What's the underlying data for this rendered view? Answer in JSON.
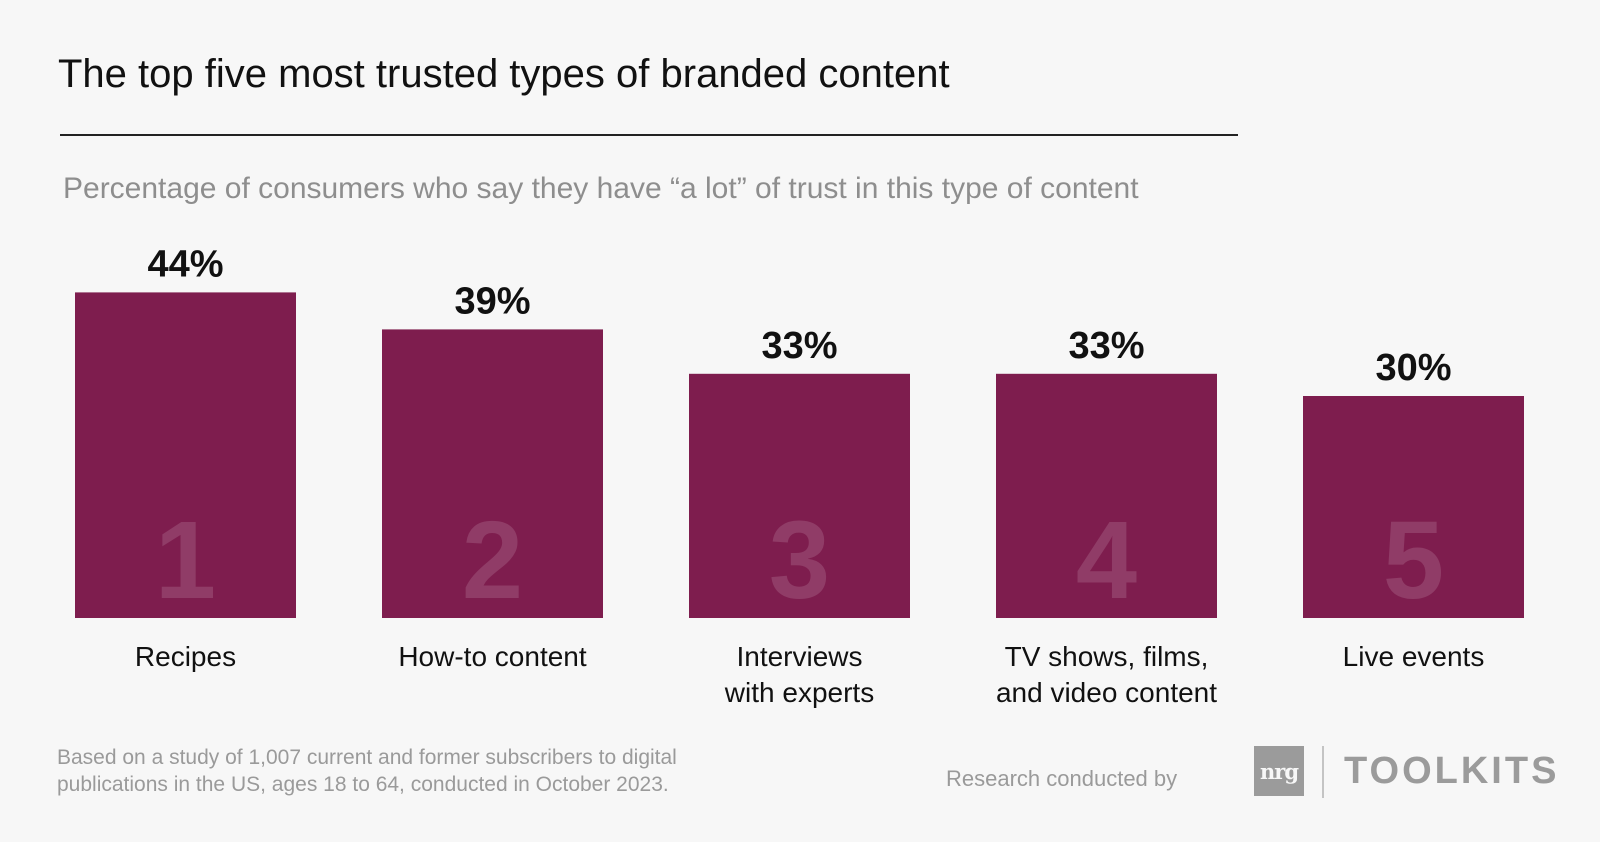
{
  "header": {
    "title": "The top five most trusted types of branded content",
    "subtitle": "Percentage of consumers who say they have “a lot” of trust in this type of content"
  },
  "chart_data": {
    "type": "bar",
    "title": "The top five most trusted types of branded content",
    "subtitle": "Percentage of consumers who say they have “a lot” of trust in this type of content",
    "categories": [
      [
        "Recipes"
      ],
      [
        "How-to content"
      ],
      [
        "Interviews",
        "with experts"
      ],
      [
        "TV shows, films,",
        "and video content"
      ],
      [
        "Live events"
      ]
    ],
    "values": [
      44,
      39,
      33,
      33,
      30
    ],
    "value_labels": [
      "44%",
      "39%",
      "33%",
      "33%",
      "30%"
    ],
    "ranks": [
      "1",
      "2",
      "3",
      "4",
      "5"
    ],
    "unit": "%",
    "bar_color": "#7e1d4e",
    "grid": false,
    "legend": "none"
  },
  "footer": {
    "note_lines": [
      "Based on a study of 1,007 current and former subscribers to digital",
      "publications in the US, ages 18 to 64, conducted in October 2023."
    ],
    "credit": "Research conducted by",
    "logo_mark": "nrg",
    "logo_text": "TOOLKITS"
  }
}
